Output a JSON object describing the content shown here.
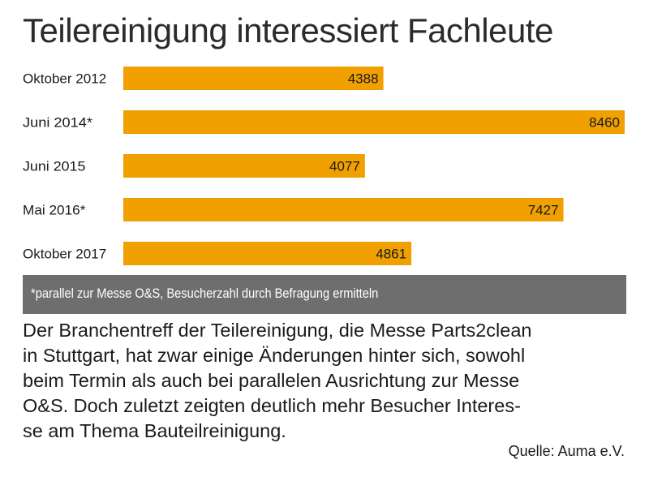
{
  "chart_data": {
    "type": "bar",
    "orientation": "horizontal",
    "title": "Teilereinigung interessiert Fachleute",
    "categories": [
      "Oktober 2012",
      "Juni 2014*",
      "Juni 2015",
      "Mai 2016*",
      "Oktober 2017"
    ],
    "values": [
      4388,
      8460,
      4077,
      7427,
      4861
    ],
    "xlim": [
      0,
      8460
    ],
    "grid": false,
    "legend": "none",
    "bar_color": "#f0a000"
  },
  "footnote": "*parallel zur Messe O&S, Besucherzahl durch Befragung ermitteln",
  "body_lines": [
    "Der Branchentreff der Teilereinigung, die Messe Parts2clean",
    "in Stuttgart, hat zwar einige Änderungen hinter sich, sowohl",
    "beim Termin als auch bei parallelen Ausrichtung zur Messe",
    "O&S. Doch zuletzt zeigten deutlich mehr Besucher Interes-",
    "se am Thema Bauteilreinigung."
  ],
  "source": "Quelle: Auma e.V.",
  "colors": {
    "bar": "#f0a000",
    "band": "#6e6e6e",
    "text": "#1a1a1a"
  }
}
